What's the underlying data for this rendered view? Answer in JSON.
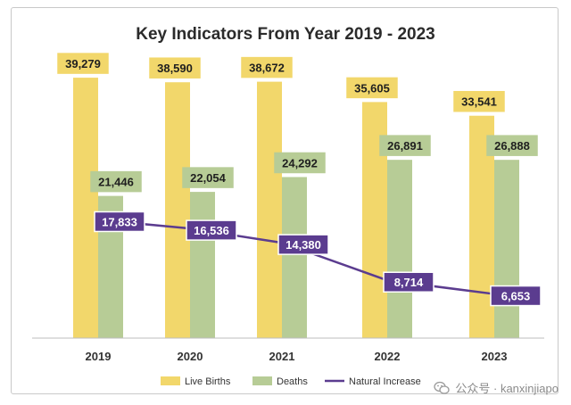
{
  "chart_data": {
    "type": "bar",
    "title": "Key Indicators From Year 2019 - 2023",
    "categories": [
      "2019",
      "2020",
      "2021",
      "2022",
      "2023"
    ],
    "series": [
      {
        "name": "Live Births",
        "kind": "bar",
        "values": [
          39279,
          38590,
          38672,
          35605,
          33541
        ],
        "labels": [
          "39,279",
          "38,590",
          "38,672",
          "35,605",
          "33,541"
        ]
      },
      {
        "name": "Deaths",
        "kind": "bar",
        "values": [
          21446,
          22054,
          24292,
          26891,
          26888
        ],
        "labels": [
          "21,446",
          "22,054",
          "24,292",
          "26,891",
          "26,888"
        ]
      },
      {
        "name": "Natural Increase",
        "kind": "line",
        "values": [
          17833,
          16536,
          14380,
          8714,
          6653
        ],
        "labels": [
          "17,833",
          "16,536",
          "14,380",
          "8,714",
          "6,653"
        ]
      }
    ],
    "ylim": [
      0,
      44000
    ],
    "legend_position": "bottom",
    "grid": false,
    "colors": {
      "Live Births": "#f2d76b",
      "Deaths": "#b7cc96",
      "Natural Increase": "#5b3c8f"
    }
  },
  "watermark": {
    "text": "公众号 · kanxinjiapo",
    "icon": "wechat-icon"
  }
}
